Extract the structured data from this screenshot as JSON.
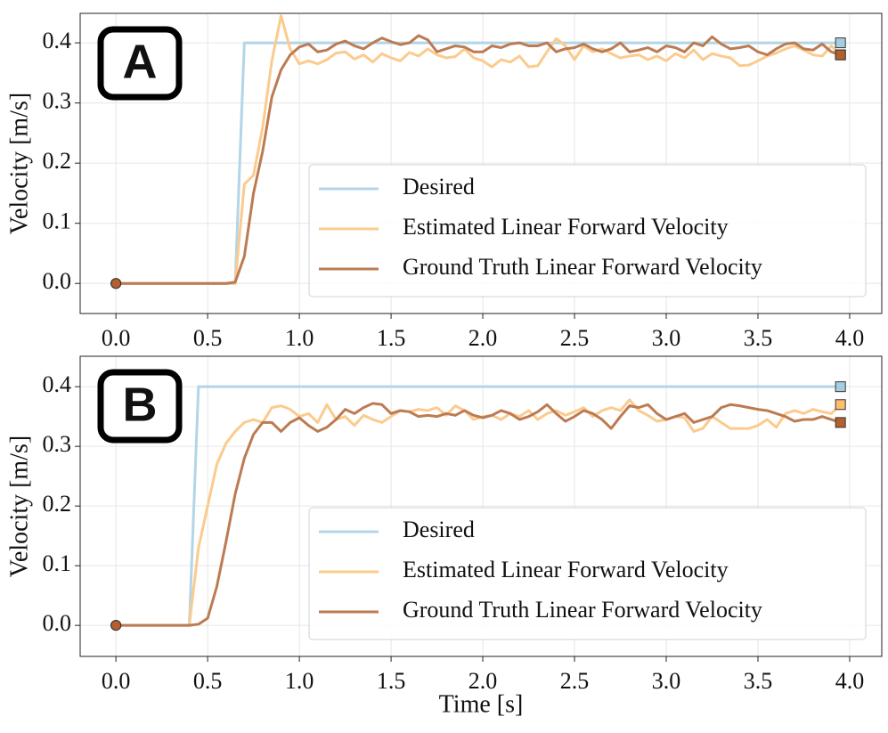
{
  "chart_data": [
    {
      "type": "line",
      "annotation": "A",
      "y_label": "Velocity [m/s]",
      "x": [
        0,
        0.05,
        0.1,
        0.15,
        0.2,
        0.25,
        0.3,
        0.35,
        0.4,
        0.45,
        0.5,
        0.55,
        0.6,
        0.65,
        0.7,
        0.75,
        0.8,
        0.85,
        0.9,
        0.95,
        1.0,
        1.05,
        1.1,
        1.15,
        1.2,
        1.25,
        1.3,
        1.35,
        1.4,
        1.45,
        1.5,
        1.55,
        1.6,
        1.65,
        1.7,
        1.75,
        1.8,
        1.85,
        1.9,
        1.95,
        2.0,
        2.05,
        2.1,
        2.15,
        2.2,
        2.25,
        2.3,
        2.35,
        2.4,
        2.45,
        2.5,
        2.55,
        2.6,
        2.65,
        2.7,
        2.75,
        2.8,
        2.85,
        2.9,
        2.95,
        3.0,
        3.05,
        3.1,
        3.15,
        3.2,
        3.25,
        3.3,
        3.35,
        3.4,
        3.45,
        3.5,
        3.55,
        3.6,
        3.65,
        3.7,
        3.75,
        3.8,
        3.85,
        3.9,
        3.95
      ],
      "series": [
        {
          "name": "Desired",
          "color": "#b3d5e8",
          "marker_color": "#a6cee3",
          "values": [
            0,
            0,
            0,
            0,
            0,
            0,
            0,
            0,
            0,
            0,
            0,
            0,
            0,
            0,
            0.4,
            0.4,
            0.4,
            0.4,
            0.4,
            0.4,
            0.4,
            0.4,
            0.4,
            0.4,
            0.4,
            0.4,
            0.4,
            0.4,
            0.4,
            0.4,
            0.4,
            0.4,
            0.4,
            0.4,
            0.4,
            0.4,
            0.4,
            0.4,
            0.4,
            0.4,
            0.4,
            0.4,
            0.4,
            0.4,
            0.4,
            0.4,
            0.4,
            0.4,
            0.4,
            0.4,
            0.4,
            0.4,
            0.4,
            0.4,
            0.4,
            0.4,
            0.4,
            0.4,
            0.4,
            0.4,
            0.4,
            0.4,
            0.4,
            0.4,
            0.4,
            0.4,
            0.4,
            0.4,
            0.4,
            0.4,
            0.4,
            0.4,
            0.4,
            0.4,
            0.4,
            0.4,
            0.4,
            0.4,
            0.4,
            0.4
          ]
        },
        {
          "name": "Estimated Linear Forward Velocity",
          "color": "#fbcb8e",
          "marker_color": "#fdbf6f",
          "values": [
            0,
            0,
            0,
            0,
            0,
            0,
            0,
            0,
            0,
            0,
            0,
            0,
            0,
            0,
            0.165,
            0.18,
            0.26,
            0.37,
            0.445,
            0.39,
            0.365,
            0.37,
            0.365,
            0.372,
            0.383,
            0.385,
            0.373,
            0.38,
            0.368,
            0.382,
            0.375,
            0.37,
            0.384,
            0.378,
            0.39,
            0.38,
            0.375,
            0.377,
            0.39,
            0.375,
            0.37,
            0.36,
            0.372,
            0.368,
            0.378,
            0.36,
            0.362,
            0.385,
            0.407,
            0.395,
            0.372,
            0.395,
            0.385,
            0.39,
            0.382,
            0.375,
            0.378,
            0.38,
            0.372,
            0.378,
            0.37,
            0.382,
            0.375,
            0.388,
            0.372,
            0.382,
            0.378,
            0.375,
            0.362,
            0.363,
            0.37,
            0.378,
            0.383,
            0.39,
            0.395,
            0.388,
            0.38,
            0.378,
            0.395,
            0.38
          ]
        },
        {
          "name": "Ground Truth Linear Forward Velocity",
          "color": "#bc7b52",
          "marker_color": "#b45f2e",
          "values": [
            0,
            0,
            0,
            0,
            0,
            0,
            0,
            0,
            0,
            0,
            0,
            0,
            0,
            0.002,
            0.045,
            0.15,
            0.22,
            0.31,
            0.355,
            0.38,
            0.393,
            0.398,
            0.385,
            0.388,
            0.398,
            0.403,
            0.395,
            0.39,
            0.4,
            0.408,
            0.402,
            0.397,
            0.4,
            0.412,
            0.405,
            0.385,
            0.39,
            0.395,
            0.393,
            0.385,
            0.385,
            0.395,
            0.392,
            0.398,
            0.4,
            0.395,
            0.395,
            0.4,
            0.385,
            0.39,
            0.392,
            0.398,
            0.39,
            0.385,
            0.39,
            0.4,
            0.385,
            0.388,
            0.392,
            0.385,
            0.395,
            0.392,
            0.385,
            0.4,
            0.395,
            0.41,
            0.398,
            0.39,
            0.392,
            0.395,
            0.385,
            0.38,
            0.39,
            0.398,
            0.4,
            0.39,
            0.388,
            0.398,
            0.385,
            0.38
          ]
        }
      ],
      "xlim": [
        -0.195,
        4.175
      ],
      "ylim": [
        -0.05,
        0.449
      ],
      "xticks": [
        {
          "value": 0,
          "label": "0.0"
        },
        {
          "value": 0.5,
          "label": "0.5"
        },
        {
          "value": 1,
          "label": "1.0"
        },
        {
          "value": 1.5,
          "label": "1.5"
        },
        {
          "value": 2,
          "label": "2.0"
        },
        {
          "value": 2.5,
          "label": "2.5"
        },
        {
          "value": 3,
          "label": "3.0"
        },
        {
          "value": 3.5,
          "label": "3.5"
        },
        {
          "value": 4,
          "label": "4.0"
        }
      ],
      "yticks": [
        {
          "value": 0,
          "label": "0.0"
        },
        {
          "value": 0.1,
          "label": "0.1"
        },
        {
          "value": 0.2,
          "label": "0.2"
        },
        {
          "value": 0.3,
          "label": "0.3"
        },
        {
          "value": 0.4,
          "label": "0.4"
        }
      ],
      "grid": true,
      "legend": "lower right"
    },
    {
      "type": "line",
      "annotation": "B",
      "y_label": "Velocity [m/s]",
      "x_label": "Time [s]",
      "x": [
        0,
        0.05,
        0.1,
        0.15,
        0.2,
        0.25,
        0.3,
        0.35,
        0.4,
        0.45,
        0.5,
        0.55,
        0.6,
        0.65,
        0.7,
        0.75,
        0.8,
        0.85,
        0.9,
        0.95,
        1.0,
        1.05,
        1.1,
        1.15,
        1.2,
        1.25,
        1.3,
        1.35,
        1.4,
        1.45,
        1.5,
        1.55,
        1.6,
        1.65,
        1.7,
        1.75,
        1.8,
        1.85,
        1.9,
        1.95,
        2.0,
        2.05,
        2.1,
        2.15,
        2.2,
        2.25,
        2.3,
        2.35,
        2.4,
        2.45,
        2.5,
        2.55,
        2.6,
        2.65,
        2.7,
        2.75,
        2.8,
        2.85,
        2.9,
        2.95,
        3.0,
        3.05,
        3.1,
        3.15,
        3.2,
        3.25,
        3.3,
        3.35,
        3.4,
        3.45,
        3.5,
        3.55,
        3.6,
        3.65,
        3.7,
        3.75,
        3.8,
        3.85,
        3.9,
        3.95
      ],
      "series": [
        {
          "name": "Desired",
          "color": "#b3d5e8",
          "marker_color": "#a6cee3",
          "values": [
            0,
            0,
            0,
            0,
            0,
            0,
            0,
            0,
            0,
            0.4,
            0.4,
            0.4,
            0.4,
            0.4,
            0.4,
            0.4,
            0.4,
            0.4,
            0.4,
            0.4,
            0.4,
            0.4,
            0.4,
            0.4,
            0.4,
            0.4,
            0.4,
            0.4,
            0.4,
            0.4,
            0.4,
            0.4,
            0.4,
            0.4,
            0.4,
            0.4,
            0.4,
            0.4,
            0.4,
            0.4,
            0.4,
            0.4,
            0.4,
            0.4,
            0.4,
            0.4,
            0.4,
            0.4,
            0.4,
            0.4,
            0.4,
            0.4,
            0.4,
            0.4,
            0.4,
            0.4,
            0.4,
            0.4,
            0.4,
            0.4,
            0.4,
            0.4,
            0.4,
            0.4,
            0.4,
            0.4,
            0.4,
            0.4,
            0.4,
            0.4,
            0.4,
            0.4,
            0.4,
            0.4,
            0.4,
            0.4,
            0.4,
            0.4,
            0.4,
            0.4
          ]
        },
        {
          "name": "Estimated Linear Forward Velocity",
          "color": "#fbcb8e",
          "marker_color": "#fdbf6f",
          "values": [
            0,
            0,
            0,
            0,
            0,
            0,
            0,
            0,
            0,
            0.13,
            0.2,
            0.27,
            0.305,
            0.325,
            0.34,
            0.345,
            0.34,
            0.365,
            0.368,
            0.362,
            0.35,
            0.355,
            0.34,
            0.37,
            0.345,
            0.35,
            0.335,
            0.352,
            0.345,
            0.34,
            0.35,
            0.36,
            0.358,
            0.362,
            0.36,
            0.365,
            0.352,
            0.368,
            0.36,
            0.345,
            0.35,
            0.352,
            0.345,
            0.355,
            0.35,
            0.36,
            0.345,
            0.355,
            0.36,
            0.352,
            0.358,
            0.365,
            0.35,
            0.36,
            0.365,
            0.36,
            0.378,
            0.36,
            0.352,
            0.342,
            0.345,
            0.35,
            0.348,
            0.325,
            0.33,
            0.35,
            0.34,
            0.33,
            0.33,
            0.33,
            0.335,
            0.345,
            0.332,
            0.355,
            0.36,
            0.355,
            0.362,
            0.358,
            0.355,
            0.37
          ]
        },
        {
          "name": "Ground Truth Linear Forward Velocity",
          "color": "#bc7b52",
          "marker_color": "#b45f2e",
          "values": [
            0,
            0,
            0,
            0,
            0,
            0,
            0,
            0,
            0,
            0.002,
            0.012,
            0.065,
            0.14,
            0.22,
            0.28,
            0.32,
            0.34,
            0.34,
            0.325,
            0.34,
            0.348,
            0.335,
            0.325,
            0.332,
            0.345,
            0.362,
            0.355,
            0.365,
            0.372,
            0.37,
            0.355,
            0.36,
            0.358,
            0.35,
            0.352,
            0.35,
            0.355,
            0.352,
            0.36,
            0.352,
            0.348,
            0.352,
            0.36,
            0.355,
            0.345,
            0.35,
            0.358,
            0.37,
            0.355,
            0.342,
            0.35,
            0.36,
            0.355,
            0.345,
            0.33,
            0.35,
            0.368,
            0.365,
            0.37,
            0.355,
            0.345,
            0.35,
            0.355,
            0.34,
            0.345,
            0.35,
            0.365,
            0.37,
            0.368,
            0.365,
            0.362,
            0.36,
            0.355,
            0.35,
            0.342,
            0.345,
            0.345,
            0.35,
            0.345,
            0.34
          ]
        }
      ],
      "xlim": [
        -0.195,
        4.175
      ],
      "ylim": [
        -0.052,
        0.451
      ],
      "xticks": [
        {
          "value": 0,
          "label": "0.0"
        },
        {
          "value": 0.5,
          "label": "0.5"
        },
        {
          "value": 1,
          "label": "1.0"
        },
        {
          "value": 1.5,
          "label": "1.5"
        },
        {
          "value": 2,
          "label": "2.0"
        },
        {
          "value": 2.5,
          "label": "2.5"
        },
        {
          "value": 3,
          "label": "3.0"
        },
        {
          "value": 3.5,
          "label": "3.5"
        },
        {
          "value": 4,
          "label": "4.0"
        }
      ],
      "yticks": [
        {
          "value": 0,
          "label": "0.0"
        },
        {
          "value": 0.1,
          "label": "0.1"
        },
        {
          "value": 0.2,
          "label": "0.2"
        },
        {
          "value": 0.3,
          "label": "0.3"
        },
        {
          "value": 0.4,
          "label": "0.4"
        }
      ],
      "grid": true,
      "legend": "lower right"
    }
  ]
}
